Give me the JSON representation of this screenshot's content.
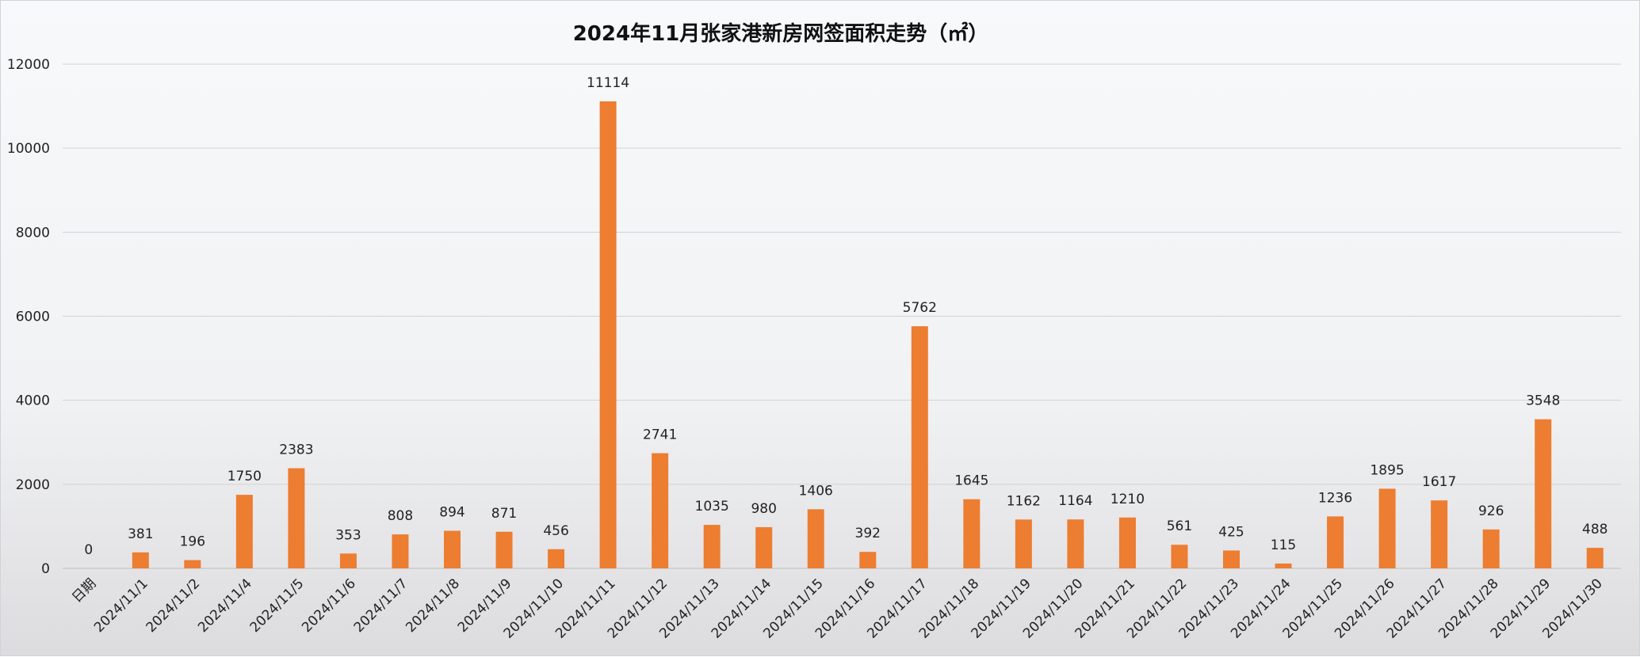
{
  "chart_data": {
    "type": "bar",
    "title": "2024年11月张家港新房网签面积走势（㎡）",
    "xlabel": "",
    "ylabel": "",
    "ylim": [
      0,
      12000
    ],
    "yticks": [
      0,
      2000,
      4000,
      6000,
      8000,
      10000,
      12000
    ],
    "grid": "horizontal",
    "legend": "none",
    "bar_color": "#ed7d31",
    "categories": [
      "日期",
      "2024/11/1",
      "2024/11/2",
      "2024/11/4",
      "2024/11/5",
      "2024/11/6",
      "2024/11/7",
      "2024/11/8",
      "2024/11/9",
      "2024/11/10",
      "2024/11/11",
      "2024/11/12",
      "2024/11/13",
      "2024/11/14",
      "2024/11/15",
      "2024/11/16",
      "2024/11/17",
      "2024/11/18",
      "2024/11/19",
      "2024/11/20",
      "2024/11/21",
      "2024/11/22",
      "2024/11/23",
      "2024/11/24",
      "2024/11/25",
      "2024/11/26",
      "2024/11/27",
      "2024/11/28",
      "2024/11/29",
      "2024/11/30"
    ],
    "values": [
      0,
      381,
      196,
      1750,
      2383,
      353,
      808,
      894,
      871,
      456,
      11114,
      2741,
      1035,
      980,
      1406,
      392,
      5762,
      1645,
      1162,
      1164,
      1210,
      561,
      425,
      115,
      1236,
      1895,
      1617,
      926,
      3548,
      488
    ]
  }
}
